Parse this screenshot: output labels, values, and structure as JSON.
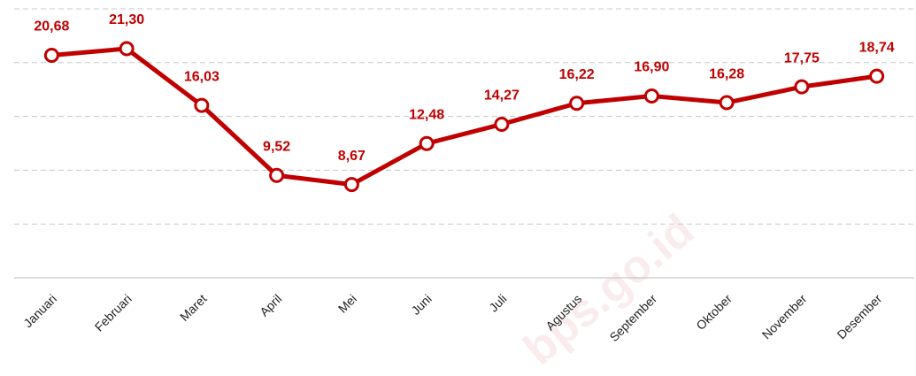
{
  "chart_data": {
    "type": "line",
    "categories": [
      "Januari",
      "Februari",
      "Maret",
      "April",
      "Mei",
      "Juni",
      "Juli",
      "Agustus",
      "September",
      "Oktober",
      "November",
      "Desember"
    ],
    "values": [
      20.68,
      21.3,
      16.03,
      9.52,
      8.67,
      12.48,
      14.27,
      16.22,
      16.9,
      16.28,
      17.75,
      18.74
    ],
    "value_labels": [
      "20,68",
      "21,30",
      "16,03",
      "9,52",
      "8,67",
      "12,48",
      "14,27",
      "16,22",
      "16,90",
      "16,28",
      "17,75",
      "18,74"
    ],
    "color": "#c00000",
    "ylim": [
      0,
      25
    ],
    "yticks": [
      0,
      5,
      10,
      15,
      20,
      25
    ],
    "grid": true,
    "watermark": "bps.go.id"
  }
}
